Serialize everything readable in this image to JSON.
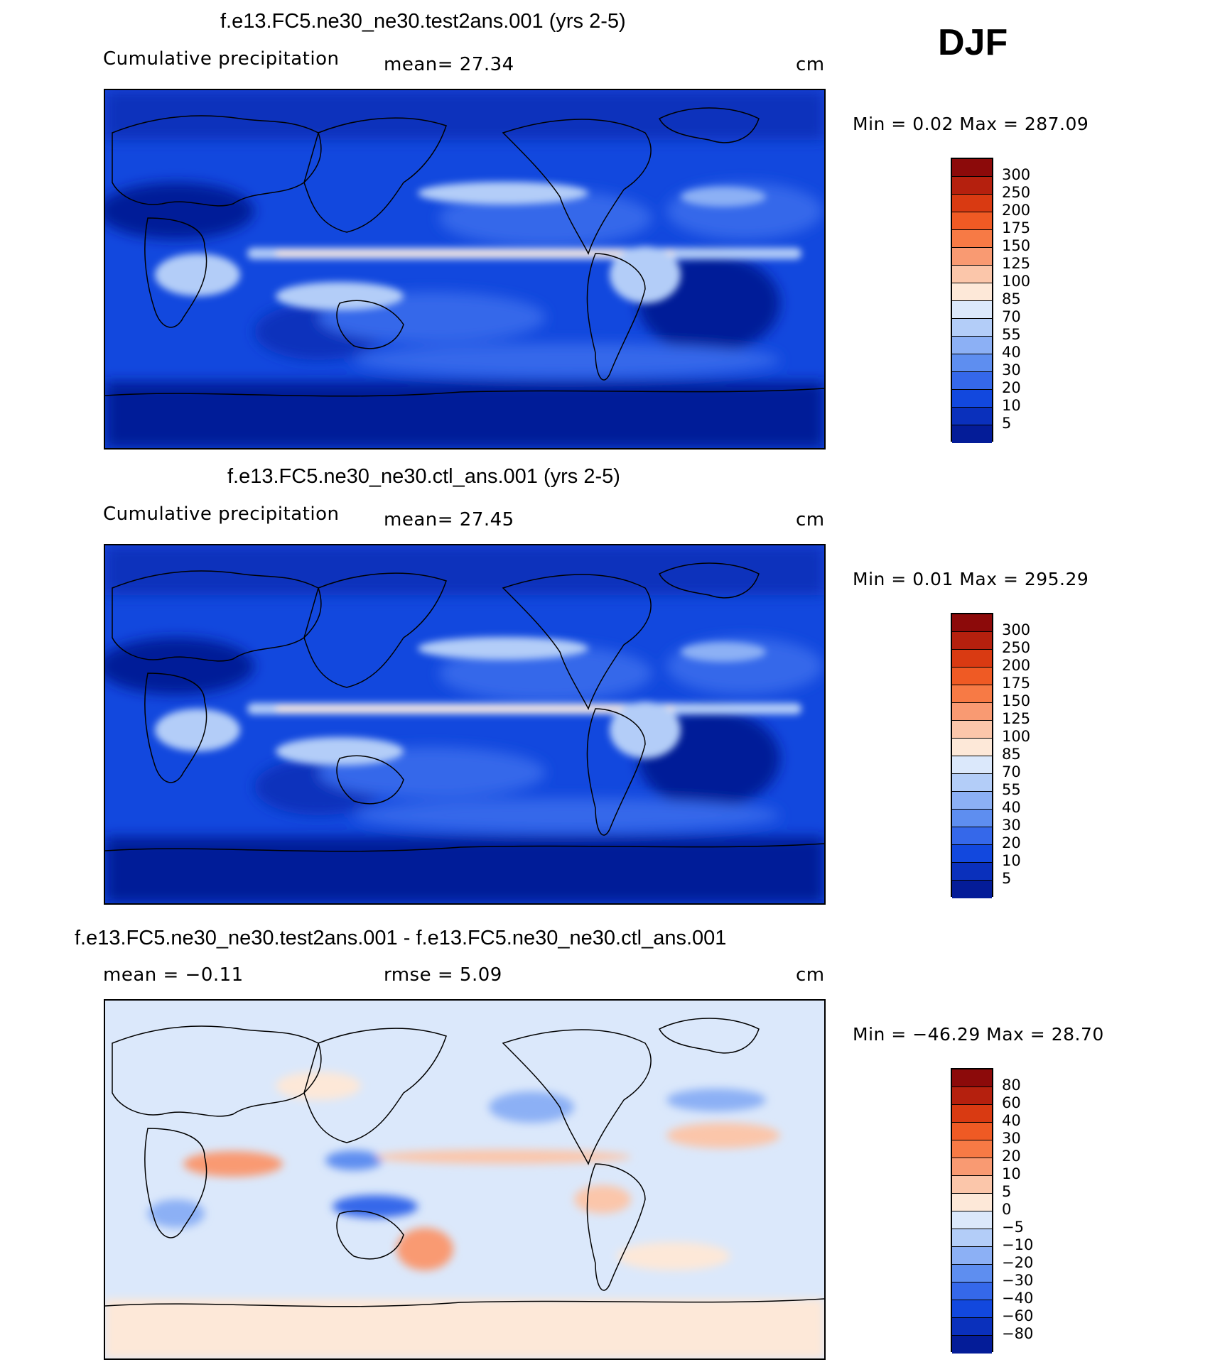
{
  "season": "DJF",
  "panels": [
    {
      "title": "f.e13.FC5.ne30_ne30.test2ans.001 (yrs 2-5)",
      "left_label": "Cumulative precipitation",
      "mid_label": "mean=   27.34",
      "units": "cm",
      "minmax": "Min =    0.02  Max  =  287.09",
      "type": "field"
    },
    {
      "title": "f.e13.FC5.ne30_ne30.ctl_ans.001 (yrs 2-5)",
      "left_label": "Cumulative precipitation",
      "mid_label": "mean=   27.45",
      "units": "cm",
      "minmax": "Min =    0.01  Max  =  295.29",
      "type": "field"
    },
    {
      "title": "f.e13.FC5.ne30_ne30.test2ans.001 - f.e13.FC5.ne30_ne30.ctl_ans.001",
      "left_label": "mean =   −0.11",
      "mid_label": "rmse =    5.09",
      "units": "cm",
      "minmax": "Min  =  −46.29  Max  =   28.70",
      "type": "diff"
    }
  ],
  "chart_data": [
    {
      "type": "heatmap",
      "title": "f.e13.FC5.ne30_ne30.test2ans.001 (yrs 2-5)",
      "variable": "Cumulative precipitation",
      "units": "cm",
      "mean": 27.34,
      "min": 0.02,
      "max": 287.09,
      "colorbar_levels": [
        "300",
        "250",
        "200",
        "175",
        "150",
        "125",
        "100",
        "85",
        "70",
        "55",
        "40",
        "30",
        "20",
        "10",
        "5"
      ],
      "colorbar_colors": [
        "#8c0a0a",
        "#b5200e",
        "#d93a12",
        "#ef5a24",
        "#f77a45",
        "#f99a72",
        "#fbc6aa",
        "#fde8d8",
        "#dbe8fb",
        "#b3cdf8",
        "#8cb0f5",
        "#5e8ef0",
        "#3568ea",
        "#1248de",
        "#0a30bc",
        "#041c98"
      ]
    },
    {
      "type": "heatmap",
      "title": "f.e13.FC5.ne30_ne30.ctl_ans.001 (yrs 2-5)",
      "variable": "Cumulative precipitation",
      "units": "cm",
      "mean": 27.45,
      "min": 0.01,
      "max": 295.29,
      "colorbar_levels": [
        "300",
        "250",
        "200",
        "175",
        "150",
        "125",
        "100",
        "85",
        "70",
        "55",
        "40",
        "30",
        "20",
        "10",
        "5"
      ],
      "colorbar_colors": [
        "#8c0a0a",
        "#b5200e",
        "#d93a12",
        "#ef5a24",
        "#f77a45",
        "#f99a72",
        "#fbc6aa",
        "#fde8d8",
        "#dbe8fb",
        "#b3cdf8",
        "#8cb0f5",
        "#5e8ef0",
        "#3568ea",
        "#1248de",
        "#0a30bc",
        "#041c98"
      ]
    },
    {
      "type": "heatmap",
      "title": "f.e13.FC5.ne30_ne30.test2ans.001 - f.e13.FC5.ne30_ne30.ctl_ans.001",
      "units": "cm",
      "mean": -0.11,
      "rmse": 5.09,
      "min": -46.29,
      "max": 28.7,
      "colorbar_levels": [
        "80",
        "60",
        "40",
        "30",
        "20",
        "10",
        "5",
        "0",
        "−5",
        "−10",
        "−20",
        "−30",
        "−40",
        "−60",
        "−80"
      ],
      "colorbar_colors": [
        "#8c0a0a",
        "#b5200e",
        "#d93a12",
        "#ef5a24",
        "#f77a45",
        "#f99a72",
        "#fbc6aa",
        "#fde8d8",
        "#dbe8fb",
        "#b3cdf8",
        "#8cb0f5",
        "#5e8ef0",
        "#3568ea",
        "#1248de",
        "#0a30bc",
        "#041c98"
      ]
    }
  ]
}
